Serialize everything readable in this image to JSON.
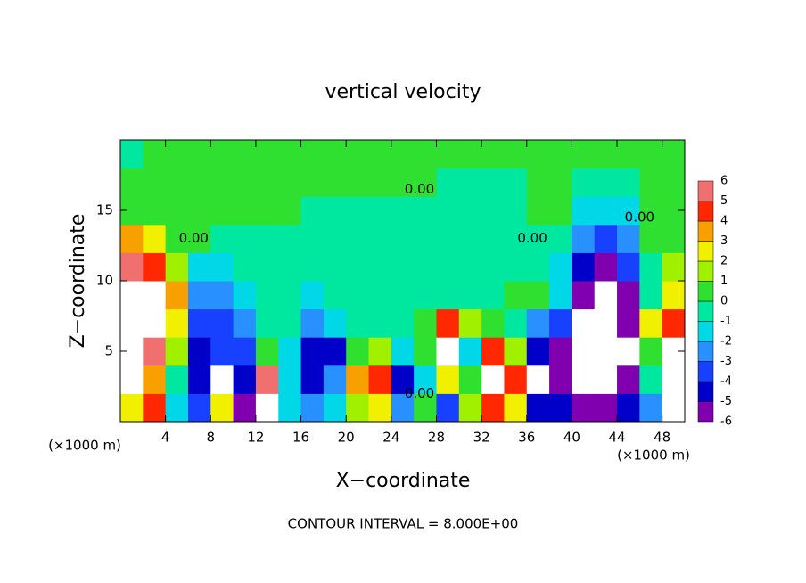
{
  "chart_data": {
    "type": "heatmap",
    "title": "vertical velocity",
    "xlabel": "X−coordinate",
    "ylabel": "Z−coordinate",
    "x_unit_left": "(×1000 m)",
    "x_unit_right": "(×1000 m)",
    "footnote": "CONTOUR INTERVAL = 8.000E+00",
    "xlim": [
      0,
      50
    ],
    "ylim": [
      0,
      20
    ],
    "xticks": [
      4,
      8,
      12,
      16,
      20,
      24,
      28,
      32,
      36,
      40,
      44,
      48
    ],
    "yticks": [
      5,
      10,
      15
    ],
    "x": [
      1,
      3,
      5,
      7,
      9,
      11,
      13,
      15,
      17,
      19,
      21,
      23,
      25,
      27,
      29,
      31,
      33,
      35,
      37,
      39,
      41,
      43,
      45,
      47,
      49
    ],
    "y": [
      1,
      3,
      5,
      7,
      9,
      11,
      13,
      15,
      17,
      19
    ],
    "values": [
      [
        3,
        7,
        8,
        8,
        8,
        6,
        4,
        1,
        0.5,
        0
      ],
      [
        5,
        4,
        6,
        8,
        8,
        5,
        3,
        1,
        0.5,
        0.5
      ],
      [
        -1,
        0,
        2,
        3,
        4,
        2,
        1,
        0.5,
        0.5,
        0.5
      ],
      [
        -3,
        -4,
        -4,
        -3,
        -2,
        -1,
        0.5,
        0.5,
        0.5,
        0.5
      ],
      [
        3,
        8,
        -3,
        -3,
        -2,
        -1,
        0,
        0.5,
        0.5,
        0.5
      ],
      [
        -5,
        -4,
        -3,
        -2,
        -1,
        -0.5,
        0,
        0.5,
        0.5,
        0.5
      ],
      [
        7,
        6,
        1,
        -0.5,
        -0.5,
        -0.5,
        0,
        0.5,
        0.5,
        0.5
      ],
      [
        -1,
        -1,
        -1,
        -0.5,
        -0.5,
        -0.5,
        -0.5,
        0.5,
        0.5,
        0.5
      ],
      [
        -2,
        -4,
        -4,
        -2,
        -1,
        -0.5,
        -0.5,
        0,
        0.5,
        0.5
      ],
      [
        -1,
        -2,
        -4,
        -1,
        0,
        -0.5,
        -0.5,
        0,
        0.5,
        0.5
      ],
      [
        2,
        4,
        1,
        0,
        -0.5,
        -0.5,
        -0.5,
        0,
        0.5,
        0.5
      ],
      [
        3,
        5,
        2,
        0,
        -0.5,
        -0.5,
        -0.5,
        0,
        0.5,
        0.5
      ],
      [
        -2,
        -4,
        -1,
        0,
        -0.5,
        -0.5,
        -0.5,
        -0.5,
        0.5,
        1
      ],
      [
        1,
        -1,
        0.5,
        1,
        0,
        -0.5,
        -0.5,
        -0.5,
        0.5,
        0.5
      ],
      [
        -3,
        3,
        8,
        5,
        0,
        -0.5,
        -0.5,
        -0.5,
        0,
        0.5
      ],
      [
        2,
        1,
        -1,
        2,
        0,
        -0.5,
        -0.5,
        -0.5,
        0,
        0.5
      ],
      [
        5,
        8,
        5,
        0.5,
        0,
        -0.5,
        -0.5,
        -0.5,
        0,
        0.5
      ],
      [
        3,
        5,
        2,
        0,
        1,
        -0.5,
        -0.5,
        -0.5,
        0,
        0.5
      ],
      [
        -4,
        8,
        -4,
        -2,
        1,
        0,
        0,
        0.5,
        0.5,
        0.5
      ],
      [
        -4,
        -5,
        -5,
        -3,
        -1,
        -1,
        0,
        0.5,
        0.5,
        0.5
      ],
      [
        -5,
        -8,
        -8,
        -8,
        -6,
        -4,
        -2,
        -1,
        0,
        0.5
      ],
      [
        -5,
        -8,
        -8,
        -8,
        -7,
        -5,
        -3,
        -1,
        0,
        0.5
      ],
      [
        -4,
        -6,
        -8,
        -6,
        -5,
        -3,
        -2,
        -1,
        0,
        0.5
      ],
      [
        -2,
        0,
        1,
        3,
        0,
        0,
        0.5,
        0.5,
        0.5,
        0.5
      ],
      [
        8,
        8,
        7,
        5,
        3,
        2,
        1,
        0.5,
        0.5,
        0.5
      ]
    ],
    "levels": [
      -6,
      -5,
      -4,
      -3,
      -2,
      -1,
      0,
      1,
      2,
      3,
      4,
      5,
      6
    ],
    "colors": [
      "#8000b0",
      "#0000c8",
      "#1840ff",
      "#2890ff",
      "#00d8e8",
      "#00e8a0",
      "#30e030",
      "#a0f000",
      "#f0f000",
      "#f8a000",
      "#ff2800",
      "#f07070"
    ],
    "out_of_range_color": "#ffffff",
    "contour_labels": [
      {
        "text": "0.00",
        "x": 6.5,
        "y": 13
      },
      {
        "text": "0.00",
        "x": 26.5,
        "y": 2
      },
      {
        "text": "0.00",
        "x": 26.5,
        "y": 16.5
      },
      {
        "text": "0.00",
        "x": 36.5,
        "y": 13
      },
      {
        "text": "0.00",
        "x": 46,
        "y": 14.5
      }
    ]
  }
}
